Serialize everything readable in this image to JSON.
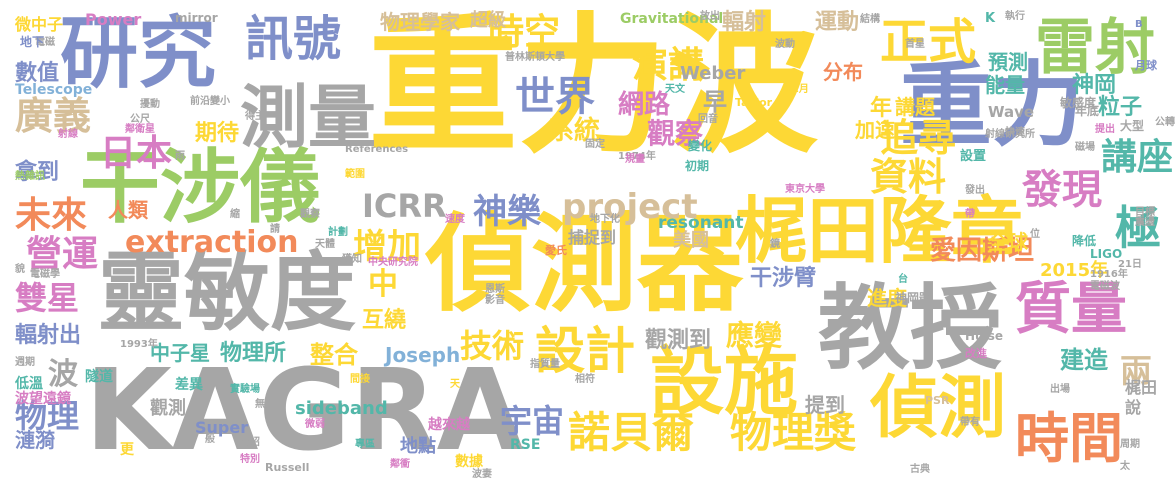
{
  "palette": {
    "yellow": "#fdd835",
    "green": "#9ccc65",
    "gray": "#a6a6a6",
    "blue": "#7f8fc9",
    "pink": "#d77dc3",
    "orange": "#f28a5a",
    "tan": "#d6bf99",
    "teal": "#53b7a9",
    "lightblue": "#82b1d8"
  },
  "words": [
    {
      "text": "重力波",
      "color": "yellow"
    },
    {
      "text": "重力",
      "color": "blue"
    },
    {
      "text": "偵測器",
      "color": "yellow"
    },
    {
      "text": "教授",
      "color": "gray"
    },
    {
      "text": "KAGRA",
      "color": "gray"
    },
    {
      "text": "靈敏度",
      "color": "gray"
    },
    {
      "text": "梶田隆章",
      "color": "yellow"
    },
    {
      "text": "干涉儀",
      "color": "green"
    },
    {
      "text": "研究",
      "color": "blue"
    },
    {
      "text": "設施",
      "color": "yellow"
    },
    {
      "text": "測量",
      "color": "gray"
    },
    {
      "text": "偵測",
      "color": "yellow"
    },
    {
      "text": "雷射",
      "color": "green"
    },
    {
      "text": "正式",
      "color": "yellow"
    },
    {
      "text": "時間",
      "color": "orange"
    },
    {
      "text": "訊號",
      "color": "blue"
    },
    {
      "text": "質量",
      "color": "pink"
    },
    {
      "text": "設計",
      "color": "yellow"
    },
    {
      "text": "諾貝爾",
      "color": "yellow"
    },
    {
      "text": "物理獎",
      "color": "yellow"
    },
    {
      "text": "extraction",
      "color": "orange"
    },
    {
      "text": "時空",
      "color": "yellow"
    },
    {
      "text": "廣義",
      "color": "tan"
    },
    {
      "text": "日本",
      "color": "pink"
    },
    {
      "text": "未來",
      "color": "orange"
    },
    {
      "text": "project",
      "color": "tan"
    },
    {
      "text": "ICRR",
      "color": "gray"
    },
    {
      "text": "神樂",
      "color": "blue"
    },
    {
      "text": "增加",
      "color": "yellow"
    },
    {
      "text": "世界",
      "color": "blue"
    },
    {
      "text": "演講",
      "color": "yellow"
    },
    {
      "text": "資料",
      "color": "yellow"
    },
    {
      "text": "追尋",
      "color": "yellow"
    },
    {
      "text": "發現",
      "color": "pink"
    },
    {
      "text": "講座",
      "color": "teal"
    },
    {
      "text": "極",
      "color": "teal"
    },
    {
      "text": "營運",
      "color": "pink"
    },
    {
      "text": "雙星",
      "color": "pink"
    },
    {
      "text": "技術",
      "color": "yellow"
    },
    {
      "text": "宇宙",
      "color": "blue"
    },
    {
      "text": "物理",
      "color": "blue"
    },
    {
      "text": "波",
      "color": "gray"
    },
    {
      "text": "中子星",
      "color": "teal"
    },
    {
      "text": "物理所",
      "color": "teal"
    },
    {
      "text": "整合",
      "color": "yellow"
    },
    {
      "text": "應變",
      "color": "yellow"
    },
    {
      "text": "干涉臂",
      "color": "blue"
    },
    {
      "text": "觀察",
      "color": "pink"
    },
    {
      "text": "網路",
      "color": "pink"
    },
    {
      "text": "系統",
      "color": "yellow"
    },
    {
      "text": "愛因斯坦",
      "color": "orange"
    },
    {
      "text": "兩",
      "color": "tan"
    },
    {
      "text": "建造",
      "color": "teal"
    },
    {
      "text": "數值",
      "color": "blue"
    },
    {
      "text": "期待",
      "color": "yellow"
    },
    {
      "text": "拿到",
      "color": "blue"
    },
    {
      "text": "人類",
      "color": "orange"
    },
    {
      "text": "互繞",
      "color": "yellow"
    },
    {
      "text": "輻射出",
      "color": "blue"
    },
    {
      "text": "Joseph",
      "color": "lightblue"
    },
    {
      "text": "觀測到",
      "color": "gray"
    },
    {
      "text": "中",
      "color": "yellow"
    },
    {
      "text": "物理學家",
      "color": "tan"
    },
    {
      "text": "超級",
      "color": "tan"
    },
    {
      "text": "Gravitational",
      "color": "green"
    },
    {
      "text": "輻射",
      "color": "tan"
    },
    {
      "text": "運動",
      "color": "tan"
    },
    {
      "text": "預測",
      "color": "teal"
    },
    {
      "text": "能量",
      "color": "teal"
    },
    {
      "text": "神岡",
      "color": "teal"
    },
    {
      "text": "粒子",
      "color": "teal"
    },
    {
      "text": "分布",
      "color": "orange"
    },
    {
      "text": "年",
      "color": "yellow"
    },
    {
      "text": "早",
      "color": "gray"
    },
    {
      "text": "講題",
      "color": "yellow"
    },
    {
      "text": "加速",
      "color": "yellow"
    },
    {
      "text": "Weber",
      "color": "gray"
    },
    {
      "text": "Wave",
      "color": "gray"
    },
    {
      "text": "resonant",
      "color": "teal"
    },
    {
      "text": "捕捉到",
      "color": "gray"
    },
    {
      "text": "美國",
      "color": "tan"
    },
    {
      "text": "全球",
      "color": "yellow"
    },
    {
      "text": "進度",
      "color": "yellow"
    },
    {
      "text": "2015年",
      "color": "yellow"
    },
    {
      "text": "提到",
      "color": "gray"
    },
    {
      "text": "梶田",
      "color": "gray"
    },
    {
      "text": "說",
      "color": "gray"
    },
    {
      "text": "觀測",
      "color": "gray"
    },
    {
      "text": "Super",
      "color": "blue"
    },
    {
      "text": "地點",
      "color": "blue"
    },
    {
      "text": "sideband",
      "color": "teal"
    },
    {
      "text": "漣漪",
      "color": "blue"
    },
    {
      "text": "波望遠鏡",
      "color": "pink"
    },
    {
      "text": "低溫",
      "color": "teal"
    },
    {
      "text": "Power",
      "color": "pink"
    },
    {
      "text": "mirror",
      "color": "gray"
    },
    {
      "text": "微中子",
      "color": "yellow"
    },
    {
      "text": "Telescope",
      "color": "lightblue"
    },
    {
      "text": "數據",
      "color": "yellow"
    },
    {
      "text": "RSE",
      "color": "teal"
    },
    {
      "text": "越來越",
      "color": "pink"
    },
    {
      "text": "隧道",
      "color": "teal"
    },
    {
      "text": "差異",
      "color": "teal"
    },
    {
      "text": "更",
      "color": "yellow"
    },
    {
      "text": "Russell",
      "color": "gray"
    },
    {
      "text": "大型",
      "color": "gray"
    },
    {
      "text": "敏感度",
      "color": "gray"
    },
    {
      "text": "K",
      "color": "teal"
    },
    {
      "text": "LIGO",
      "color": "teal"
    },
    {
      "text": "降低",
      "color": "teal"
    },
    {
      "text": "Hulse",
      "color": "gray"
    },
    {
      "text": "神岡號",
      "color": "gray"
    },
    {
      "text": "改進",
      "color": "pink"
    },
    {
      "text": "PSR",
      "color": "tan"
    },
    {
      "text": "Taylor",
      "color": "yellow"
    },
    {
      "text": "References",
      "color": "gray"
    },
    {
      "text": "1974年",
      "color": "gray"
    },
    {
      "text": "東京大學",
      "color": "pink"
    },
    {
      "text": "地下化",
      "color": "gray"
    },
    {
      "text": "中央研究院",
      "color": "pink"
    },
    {
      "text": "普林斯頓大學",
      "color": "gray"
    },
    {
      "text": "射線研究所",
      "color": "gray"
    },
    {
      "text": "1993年",
      "color": "gray"
    },
    {
      "text": "1916年",
      "color": "gray"
    },
    {
      "text": "電磁波",
      "color": "gray"
    },
    {
      "text": "月球",
      "color": "blue"
    },
    {
      "text": "執行",
      "color": "gray"
    },
    {
      "text": "結構",
      "color": "gray"
    },
    {
      "text": "放出",
      "color": "gray"
    },
    {
      "text": "得主",
      "color": "gray"
    },
    {
      "text": "天文",
      "color": "teal"
    },
    {
      "text": "回音",
      "color": "gray"
    },
    {
      "text": "12月",
      "color": "yellow"
    },
    {
      "text": "變化",
      "color": "teal"
    },
    {
      "text": "初期",
      "color": "teal"
    },
    {
      "text": "固定",
      "color": "gray"
    },
    {
      "text": "規畫",
      "color": "pink"
    },
    {
      "text": "設置",
      "color": "teal"
    },
    {
      "text": "發出",
      "color": "gray"
    },
    {
      "text": "磁場",
      "color": "gray"
    },
    {
      "text": "年底",
      "color": "gray"
    },
    {
      "text": "提出",
      "color": "pink"
    },
    {
      "text": "公轉",
      "color": "gray"
    },
    {
      "text": "目標",
      "color": "gray"
    },
    {
      "text": "震盪",
      "color": "gray"
    },
    {
      "text": "帶",
      "color": "pink"
    },
    {
      "text": "速度",
      "color": "pink"
    },
    {
      "text": "計劃",
      "color": "teal"
    },
    {
      "text": "天體",
      "color": "gray"
    },
    {
      "text": "獲知",
      "color": "gray"
    },
    {
      "text": "愛氏",
      "color": "orange"
    },
    {
      "text": "台",
      "color": "teal"
    },
    {
      "text": "恩斯",
      "color": "gray"
    },
    {
      "text": "影音",
      "color": "gray"
    },
    {
      "text": "21日",
      "color": "gray"
    },
    {
      "text": "帶有",
      "color": "gray"
    },
    {
      "text": "無疑",
      "color": "gray"
    },
    {
      "text": "微弱",
      "color": "pink"
    },
    {
      "text": "專區",
      "color": "teal"
    },
    {
      "text": "鄰衝",
      "color": "pink"
    },
    {
      "text": "波妻",
      "color": "gray"
    },
    {
      "text": "古典",
      "color": "gray"
    },
    {
      "text": "太",
      "color": "gray"
    },
    {
      "text": "電磁學",
      "color": "gray"
    },
    {
      "text": "熱雜訊",
      "color": "green"
    },
    {
      "text": "射線",
      "color": "pink"
    },
    {
      "text": "鄰衛星",
      "color": "pink"
    },
    {
      "text": "週期",
      "color": "gray"
    },
    {
      "text": "介紹",
      "color": "gray"
    },
    {
      "text": "實驗場",
      "color": "teal"
    },
    {
      "text": "特別",
      "color": "pink"
    },
    {
      "text": "間接",
      "color": "yellow"
    },
    {
      "text": "範圍",
      "color": "yellow"
    },
    {
      "text": "前沿",
      "color": "gray"
    },
    {
      "text": "公尺",
      "color": "gray"
    },
    {
      "text": "變小",
      "color": "gray"
    },
    {
      "text": "電磁",
      "color": "gray"
    },
    {
      "text": "地下",
      "color": "blue"
    },
    {
      "text": "B",
      "color": "blue"
    },
    {
      "text": "首星",
      "color": "gray"
    },
    {
      "text": "波動",
      "color": "gray"
    },
    {
      "text": "快速",
      "color": "gray"
    },
    {
      "text": "出場",
      "color": "gray"
    },
    {
      "text": "相符",
      "color": "gray"
    },
    {
      "text": "周期",
      "color": "gray"
    },
    {
      "text": "指質量",
      "color": "gray"
    },
    {
      "text": "觀察",
      "color": "gray"
    },
    {
      "text": "般",
      "color": "gray"
    },
    {
      "text": "請",
      "color": "gray"
    },
    {
      "text": "天",
      "color": "yellow"
    },
    {
      "text": "擾動",
      "color": "gray"
    },
    {
      "text": "鏡",
      "color": "gray"
    },
    {
      "text": "縮",
      "color": "gray"
    },
    {
      "text": "位",
      "color": "gray"
    },
    {
      "text": "雨",
      "color": "gray"
    },
    {
      "text": "貌",
      "color": "gray"
    },
    {
      "text": "電",
      "color": "gray"
    },
    {
      "text": "出勤",
      "color": "gray"
    }
  ]
}
